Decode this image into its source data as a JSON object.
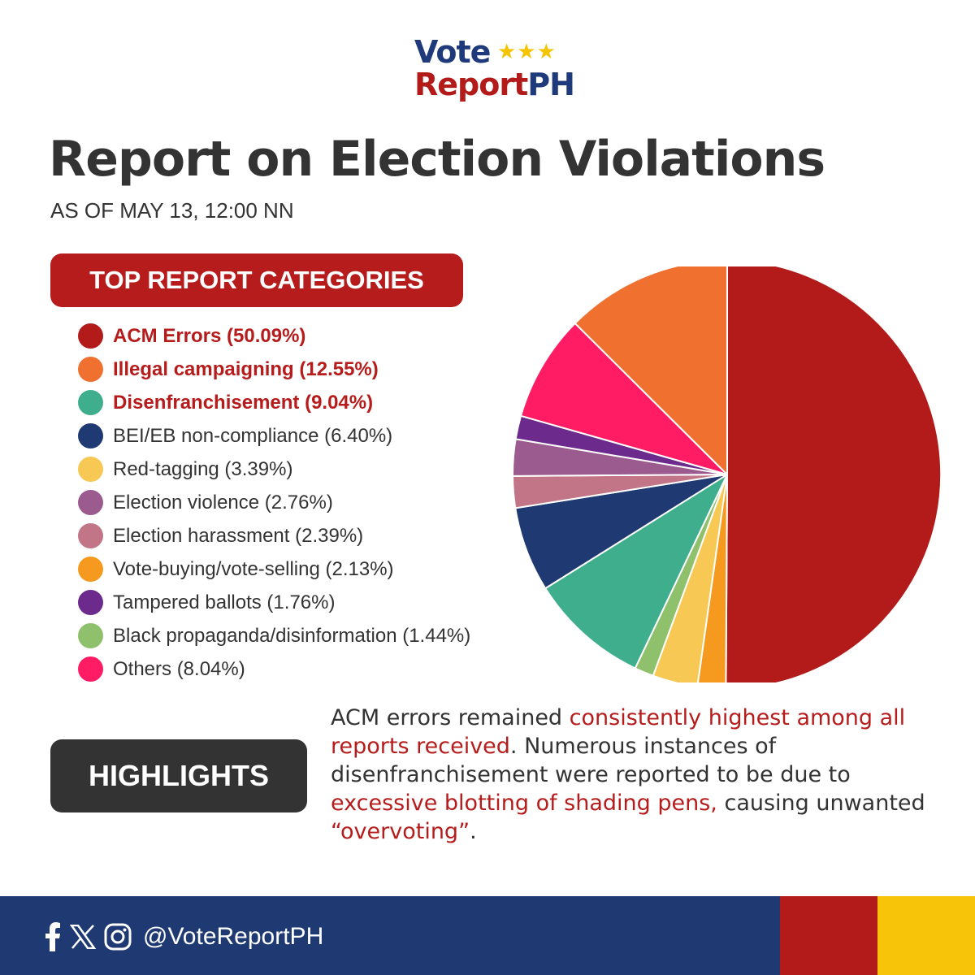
{
  "logo": {
    "vote": "Vote",
    "stars": "★★★",
    "report_part1": "Report",
    "report_part2": "PH"
  },
  "title": "Report on Election Violations",
  "subtitle": "AS OF MAY 13, 12:00 NN",
  "categories_header": "TOP REPORT CATEGORIES",
  "chart_data": {
    "type": "pie",
    "title": "",
    "legend_position": "left",
    "slices": [
      {
        "label": "ACM Errors (50.09%)",
        "value": 50.09,
        "color": "#b31b1b",
        "highlight": true
      },
      {
        "label": "Illegal campaigning (12.55%)",
        "value": 12.55,
        "color": "#f07030",
        "highlight": true
      },
      {
        "label": "Disenfranchisement (9.04%)",
        "value": 9.04,
        "color": "#3fae8c",
        "highlight": true
      },
      {
        "label": "BEI/EB non-compliance (6.40%)",
        "value": 6.4,
        "color": "#1f3a73",
        "highlight": false
      },
      {
        "label": "Red-tagging (3.39%)",
        "value": 3.39,
        "color": "#f7c854",
        "highlight": false
      },
      {
        "label": "Election violence (2.76%)",
        "value": 2.76,
        "color": "#9b5b8f",
        "highlight": false
      },
      {
        "label": "Election harassment (2.39%)",
        "value": 2.39,
        "color": "#c27586",
        "highlight": false
      },
      {
        "label": "Vote-buying/vote-selling (2.13%)",
        "value": 2.13,
        "color": "#f59a1e",
        "highlight": false
      },
      {
        "label": "Tampered ballots (1.76%)",
        "value": 1.76,
        "color": "#6c2a8c",
        "highlight": false
      },
      {
        "label": "Black propaganda/disinformation (1.44%)",
        "value": 1.44,
        "color": "#8fc06c",
        "highlight": false
      },
      {
        "label": "Others (8.04%)",
        "value": 8.04,
        "color": "#ff1c64",
        "highlight": false
      }
    ],
    "pie_order": [
      0,
      7,
      4,
      9,
      2,
      3,
      6,
      5,
      8,
      10,
      1
    ]
  },
  "highlights": {
    "label": "HIGHLIGHTS",
    "t1": "ACM errors remained ",
    "t2": "consistently highest among all reports received",
    "t3": ". Numerous instances of disenfranchisement were reported to be due to ",
    "t4": "excessive blotting of shading pens,",
    "t5": " causing unwanted ",
    "t6": "“overvoting”",
    "t7": "."
  },
  "footer": {
    "handle": "@VoteReportPH",
    "icons": [
      "facebook-icon",
      "x-icon",
      "instagram-icon"
    ]
  }
}
